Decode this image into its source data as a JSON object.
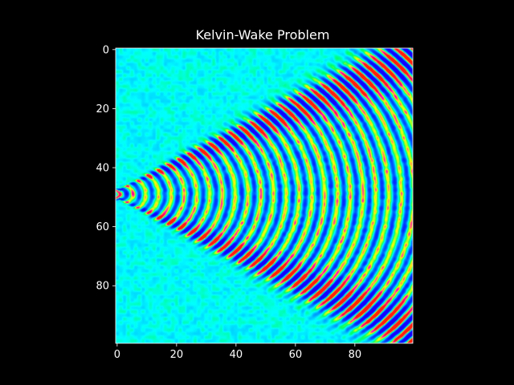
{
  "colors": {
    "figure_background": "#000000",
    "axis_and_text": "#ffffff",
    "colormap": [
      "#00ffff",
      "#00ff66",
      "#0044ff",
      "#1a00ff",
      "#ff00cc",
      "#ffff00",
      "#ff2200"
    ]
  },
  "chart_data": {
    "type": "heatmap",
    "title": "Kelvin-Wake Problem",
    "xlabel": "",
    "ylabel": "",
    "x_ticks": [
      0,
      20,
      40,
      60,
      80
    ],
    "y_ticks": [
      0,
      20,
      40,
      60,
      80
    ],
    "xlim": [
      -0.5,
      99.5
    ],
    "ylim": [
      99.5,
      -0.5
    ],
    "grid": "N",
    "y_axis_direction": "top-to-bottom",
    "grid_size": [
      100,
      100
    ],
    "description_of_field": {
      "source_row": 49,
      "source_col": 0,
      "wake_half_angle_deg": 19.47,
      "crest_spacing_cols": 4.3,
      "background_level": 0.5
    }
  }
}
